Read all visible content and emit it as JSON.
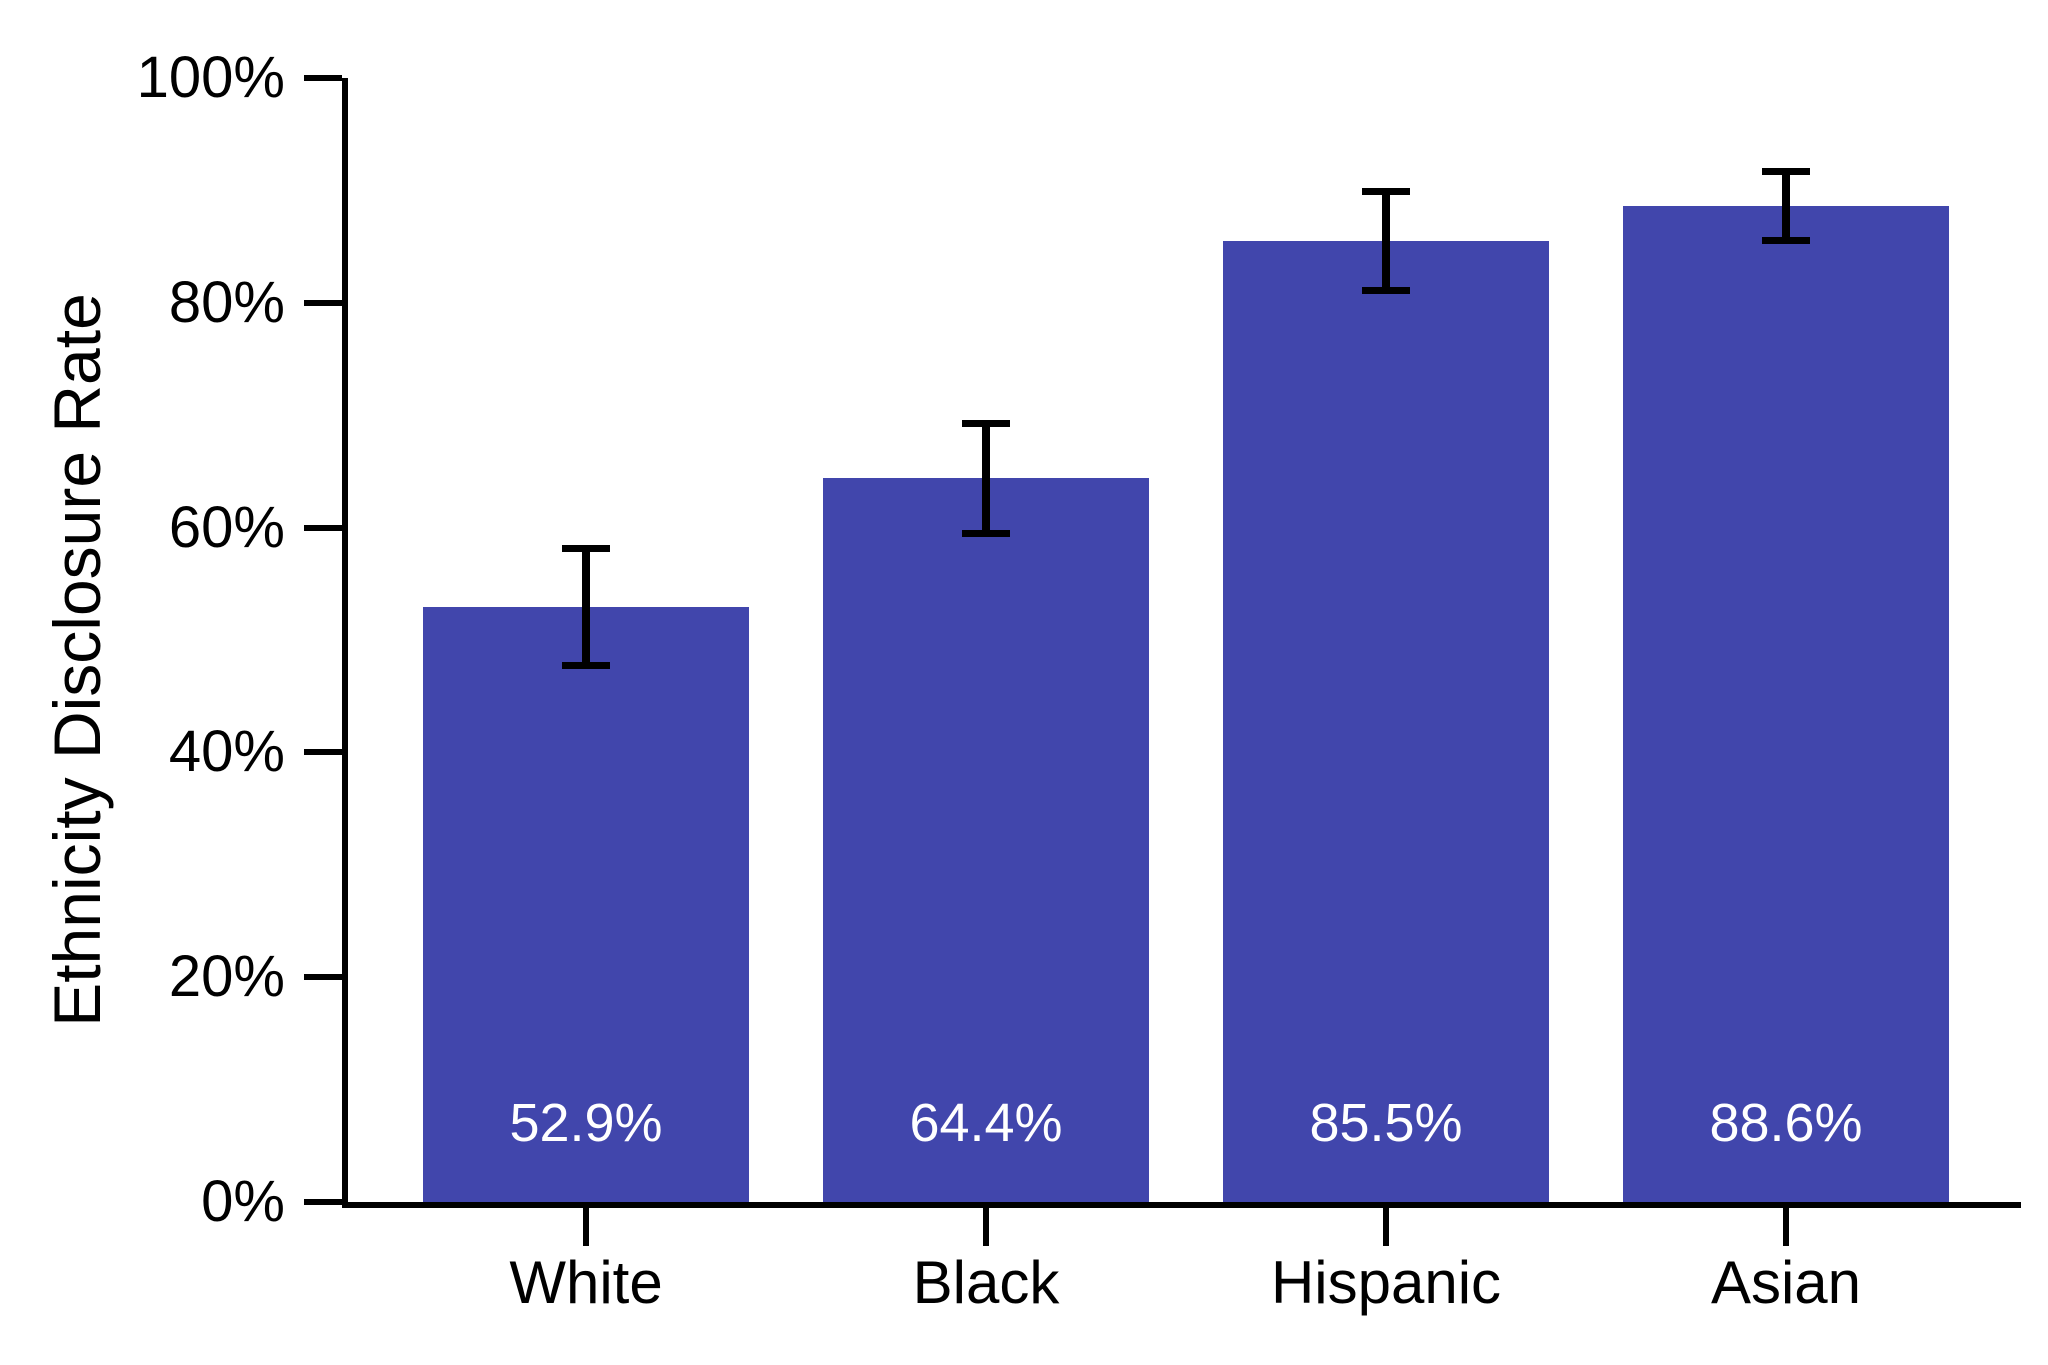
{
  "figure": {
    "background": "#ffffff"
  },
  "chart_data": {
    "type": "bar",
    "title": "",
    "xlabel": "",
    "ylabel": "Ethnicity Disclosure Rate",
    "categories": [
      "White",
      "Black",
      "Hispanic",
      "Asian"
    ],
    "values": [
      52.9,
      64.4,
      85.5,
      88.6
    ],
    "bar_labels": [
      "52.9%",
      "64.4%",
      "85.5%",
      "88.6%"
    ],
    "errors": [
      5.2,
      4.9,
      4.4,
      3.1
    ],
    "ylim": [
      0,
      100
    ],
    "y_ticks": [
      {
        "value": 0,
        "label": "0%"
      },
      {
        "value": 20,
        "label": "20%"
      },
      {
        "value": 40,
        "label": "40%"
      },
      {
        "value": 60,
        "label": "60%"
      },
      {
        "value": 80,
        "label": "80%"
      },
      {
        "value": 100,
        "label": "100%"
      }
    ],
    "grid": false,
    "legend": "none",
    "bar_color": "#4146AC",
    "bar_label_color": "#ffffff",
    "error_bar_color": "#000000",
    "axis_color": "#000000"
  }
}
